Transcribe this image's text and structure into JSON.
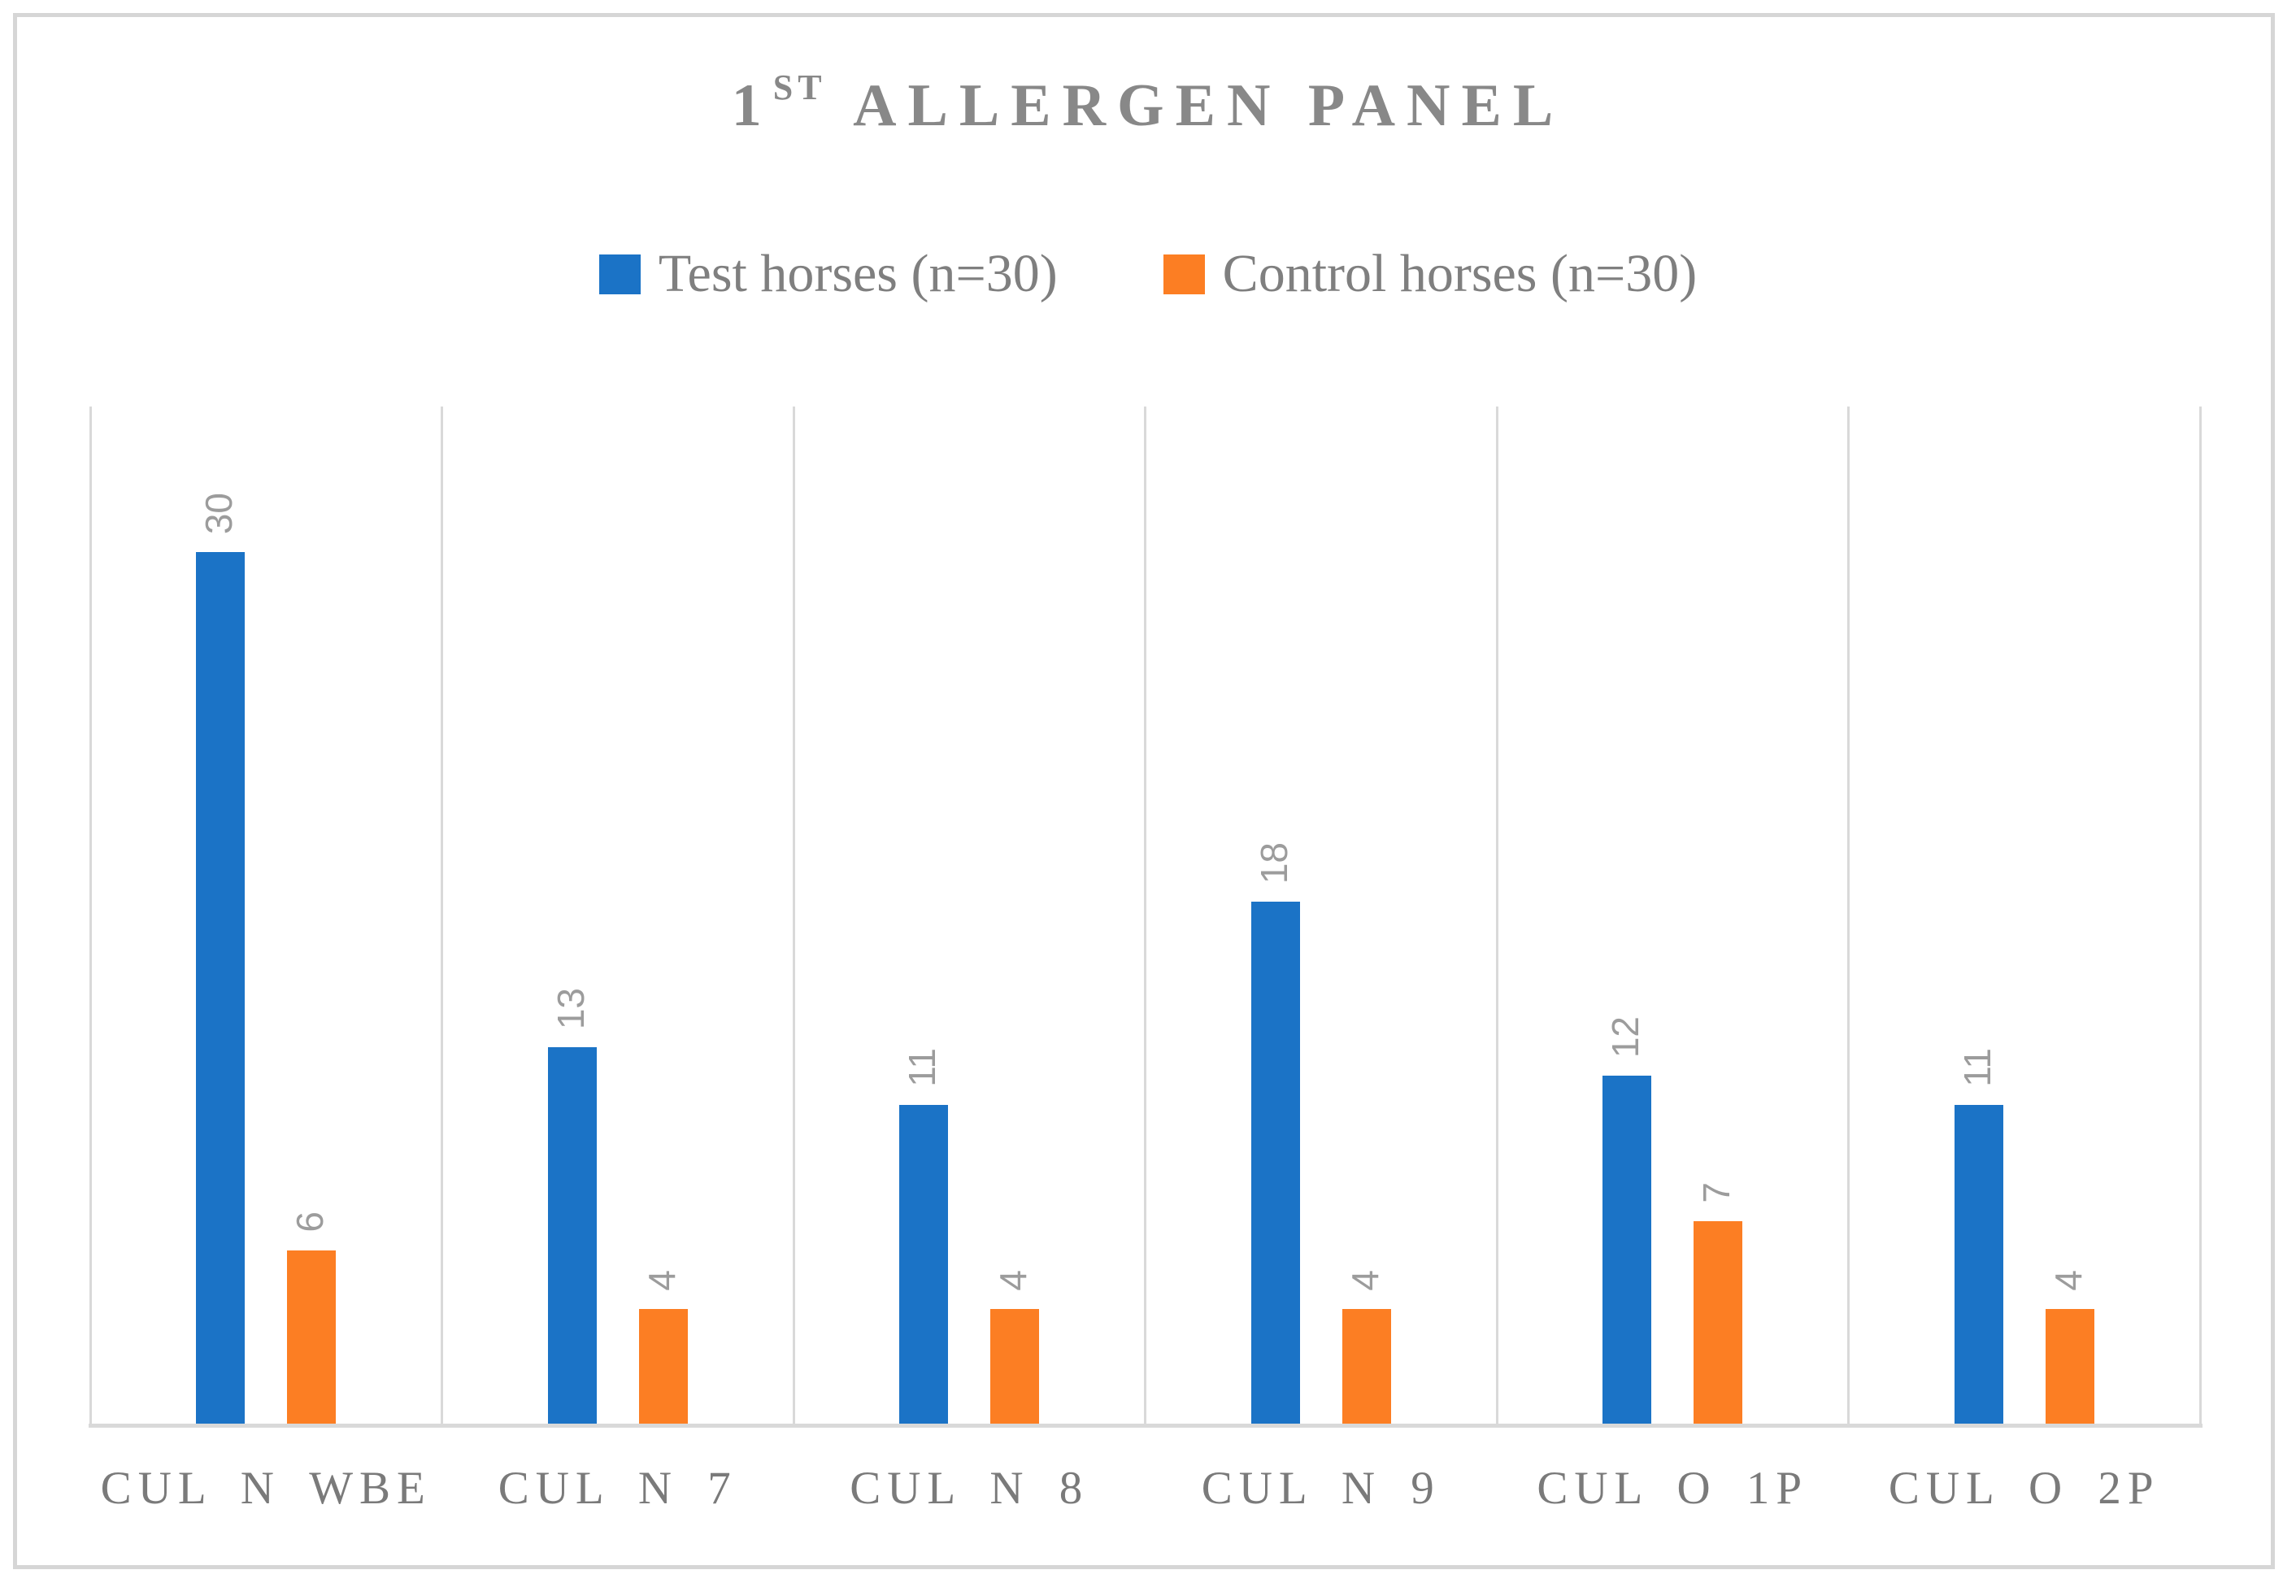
{
  "figure": {
    "title": {
      "prefix": "1",
      "superscript": "ST",
      "rest": "ALLERGEN PANEL"
    }
  },
  "chart_data": {
    "type": "bar",
    "title": "1st Allergen Panel",
    "categories": [
      "CUL N WBE",
      "CUL N 7",
      "CUL N 8",
      "CUL N 9",
      "CUL O 1P",
      "CUL O 2P"
    ],
    "series": [
      {
        "name": "Test horses (n=30)",
        "color": "#1B73C6",
        "values": [
          30,
          13,
          11,
          18,
          12,
          11
        ]
      },
      {
        "name": "Control horses (n=30)",
        "color": "#FC7E23",
        "values": [
          6,
          4,
          4,
          4,
          7,
          4
        ]
      }
    ],
    "data_labels": {
      "position": "outside-end",
      "rotation": -90,
      "color": "#9C9C9C"
    },
    "xlabel": "",
    "ylabel": "",
    "ylim": [
      0,
      35
    ],
    "y_axis_visible": false,
    "grid": "vertical-category-separators",
    "gridline_color": "#D9D9D9",
    "legend_position": "top",
    "text_color": "#7F7F7F",
    "title_color": "#888888",
    "frame_color": "#D6D6D6"
  }
}
